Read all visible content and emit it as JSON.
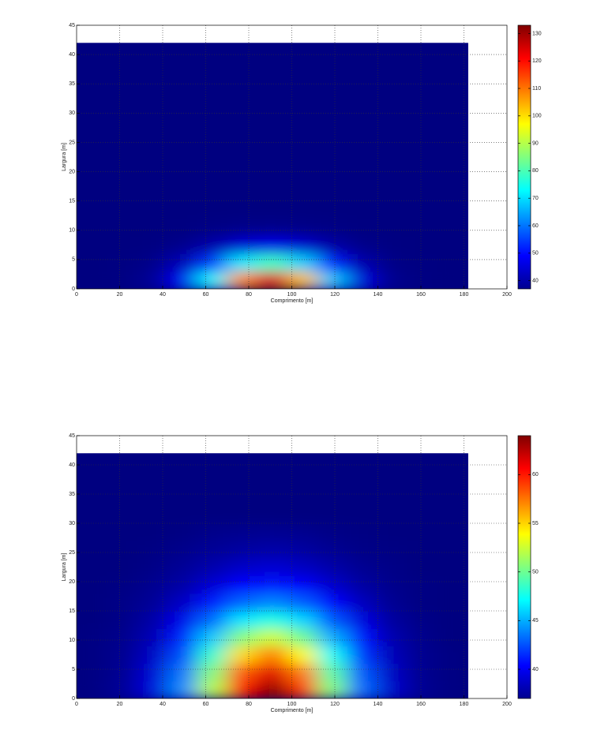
{
  "chart_data": [
    {
      "type": "heatmap",
      "xlabel": "Comprimento [m]",
      "ylabel": "Largura [m]",
      "x": [
        7,
        21,
        35,
        49,
        63,
        77,
        91,
        105,
        119,
        133,
        147,
        161,
        175
      ],
      "y": [
        1.5,
        4.5,
        7.5,
        10.5,
        13.5,
        16.5,
        19.5,
        22.5,
        25.5,
        28.5,
        31.5,
        34.5,
        37.5,
        40.5
      ],
      "z": [
        [
          37,
          37.2,
          39,
          47.7,
          72.2,
          108,
          124.6,
          103.1,
          67.7,
          45.7,
          38.5,
          37.2,
          37
        ],
        [
          37,
          37.1,
          38,
          42.1,
          53.9,
          71,
          79,
          68.7,
          51.7,
          41.2,
          37.7,
          37.1,
          37
        ],
        [
          37,
          37,
          37.2,
          38.2,
          40.9,
          44.9,
          46.7,
          44.3,
          40.4,
          38,
          37.2,
          37,
          37
        ],
        [
          37,
          37,
          37,
          37.1,
          37.4,
          37.9,
          38.1,
          37.8,
          37.4,
          37.1,
          37,
          37,
          37
        ],
        [
          37,
          37,
          37,
          37,
          37,
          37,
          37,
          37,
          37,
          37,
          37,
          37,
          37
        ],
        [
          37,
          37,
          37,
          37,
          37,
          37,
          37,
          37,
          37,
          37,
          37,
          37,
          37
        ],
        [
          37,
          37,
          37,
          37,
          37,
          37,
          37,
          37,
          37,
          37,
          37,
          37,
          37
        ],
        [
          37,
          37,
          37,
          37,
          37,
          37,
          37,
          37,
          37,
          37,
          37,
          37,
          37
        ],
        [
          37,
          37,
          37,
          37,
          37,
          37,
          37,
          37,
          37,
          37,
          37,
          37,
          37
        ],
        [
          37,
          37,
          37,
          37,
          37,
          37,
          37,
          37,
          37,
          37,
          37,
          37,
          37
        ],
        [
          37,
          37,
          37,
          37,
          37,
          37,
          37,
          37,
          37,
          37,
          37,
          37,
          37
        ],
        [
          37,
          37,
          37,
          37,
          37,
          37,
          37,
          37,
          37,
          37,
          37,
          37,
          37
        ],
        [
          37,
          37,
          37,
          37,
          37,
          37,
          37,
          37,
          37,
          37,
          37,
          37,
          37
        ],
        [
          37,
          37,
          37,
          37,
          37,
          37,
          37,
          37,
          37,
          37,
          37,
          37,
          37
        ]
      ],
      "xlim": [
        0,
        200
      ],
      "xticks": [
        0,
        20,
        40,
        60,
        80,
        100,
        120,
        140,
        160,
        180,
        200
      ],
      "ylim": [
        0,
        45
      ],
      "yticks": [
        0,
        5,
        10,
        15,
        20,
        25,
        30,
        35,
        40,
        45
      ],
      "clim": [
        37,
        133
      ],
      "cticks": [
        40,
        50,
        60,
        70,
        80,
        90,
        100,
        110,
        120,
        130
      ],
      "grid": true
    },
    {
      "type": "heatmap",
      "xlabel": "Comprimento [m]",
      "ylabel": "Largura [m]",
      "x": [
        7,
        21,
        35,
        49,
        63,
        77,
        91,
        105,
        119,
        133,
        147,
        161,
        175
      ],
      "y": [
        1.5,
        4.5,
        7.5,
        10.5,
        13.5,
        16.5,
        19.5,
        22.5,
        25.5,
        28.5,
        31.5,
        34.5,
        37.5,
        40.5
      ],
      "z": [
        [
          37.1,
          37.6,
          39.4,
          44,
          51.9,
          60.3,
          63.7,
          59.3,
          50.6,
          43.1,
          39,
          37.5,
          37.1
        ],
        [
          37.1,
          37.5,
          39.2,
          43.4,
          50.6,
          58.3,
          61.4,
          57.4,
          49.4,
          42.6,
          38.8,
          37.4,
          37.1
        ],
        [
          37.1,
          37.4,
          38.8,
          42.3,
          48.4,
          54.8,
          57.4,
          54,
          47.4,
          41.7,
          38.5,
          37.4,
          37.1
        ],
        [
          37.1,
          37.3,
          38.4,
          41.1,
          45.7,
          50.6,
          52.6,
          50,
          45,
          40.6,
          38.2,
          37.3,
          37
        ],
        [
          37,
          37.2,
          38,
          39.8,
          43.1,
          46.5,
          47.9,
          46.1,
          42.6,
          39.5,
          37.8,
          37.2,
          37
        ],
        [
          37,
          37.2,
          37.6,
          38.8,
          40.9,
          43,
          43.9,
          42.8,
          40.5,
          38.6,
          37.5,
          37.1,
          37
        ],
        [
          37,
          37.1,
          37.4,
          38,
          39.2,
          40.5,
          41,
          40.3,
          39,
          37.9,
          37.3,
          37.1,
          37
        ],
        [
          37,
          37,
          37.2,
          37.6,
          38.2,
          38.9,
          39.2,
          38.8,
          38.1,
          37.5,
          37.2,
          37,
          37
        ],
        [
          37,
          37,
          37.1,
          37.3,
          37.6,
          37.9,
          38.1,
          37.9,
          37.5,
          37.2,
          37.1,
          37,
          37
        ],
        [
          37,
          37,
          37,
          37.1,
          37.3,
          37.4,
          37.5,
          37.4,
          37.2,
          37.1,
          37,
          37,
          37
        ],
        [
          37,
          37,
          37,
          37,
          37,
          37,
          37,
          37,
          37,
          37,
          37,
          37,
          37
        ],
        [
          37,
          37,
          37,
          37,
          37,
          37,
          37,
          37,
          37,
          37,
          37,
          37,
          37
        ],
        [
          37,
          37,
          37,
          37,
          37,
          37,
          37,
          37,
          37,
          37,
          37,
          37,
          37
        ],
        [
          37,
          37,
          37,
          37,
          37,
          37,
          37,
          37,
          37,
          37,
          37,
          37,
          37
        ]
      ],
      "xlim": [
        0,
        200
      ],
      "xticks": [
        0,
        20,
        40,
        60,
        80,
        100,
        120,
        140,
        160,
        180,
        200
      ],
      "ylim": [
        0,
        45
      ],
      "yticks": [
        0,
        5,
        10,
        15,
        20,
        25,
        30,
        35,
        40,
        45
      ],
      "clim": [
        37,
        64
      ],
      "cticks": [
        40,
        45,
        50,
        55,
        60
      ],
      "grid": true
    }
  ]
}
